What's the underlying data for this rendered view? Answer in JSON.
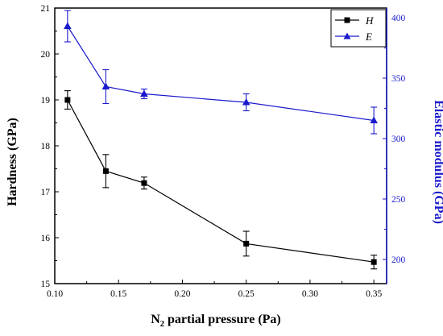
{
  "chart_data": {
    "type": "line",
    "xlabel": {
      "main": "N",
      "sub": "2",
      "rest": " partial pressure (Pa)"
    },
    "ylabel_left": "Hardness (GPa)",
    "ylabel_right": "Elastic modulus (GPa)",
    "xlim": [
      0.1,
      0.36
    ],
    "ylim_left": [
      15,
      21
    ],
    "ylim_right": [
      180,
      408
    ],
    "x_ticks": [
      "0.10",
      "0.15",
      "0.20",
      "0.25",
      "0.30",
      "0.35"
    ],
    "y_left_ticks": [
      "15",
      "16",
      "17",
      "18",
      "19",
      "20",
      "21"
    ],
    "y_right_ticks": [
      "200",
      "250",
      "300",
      "350",
      "400"
    ],
    "legend_position": "top-right",
    "colors": {
      "left_axis": "#000000",
      "right_axis": "#1a1acc"
    },
    "series": [
      {
        "name": "H",
        "axis": "left",
        "marker": "square",
        "color": "#000000",
        "x": [
          0.11,
          0.14,
          0.17,
          0.25,
          0.35
        ],
        "y": [
          19.0,
          17.45,
          17.19,
          15.87,
          15.47
        ],
        "error": [
          0.2,
          0.36,
          0.13,
          0.27,
          0.15
        ]
      },
      {
        "name": "E",
        "axis": "right",
        "marker": "triangle",
        "color": "#1a1acc",
        "x": [
          0.11,
          0.14,
          0.17,
          0.25,
          0.35
        ],
        "y": [
          393,
          343,
          337,
          330,
          315
        ],
        "error": [
          13,
          14,
          4,
          7,
          11
        ]
      }
    ]
  }
}
